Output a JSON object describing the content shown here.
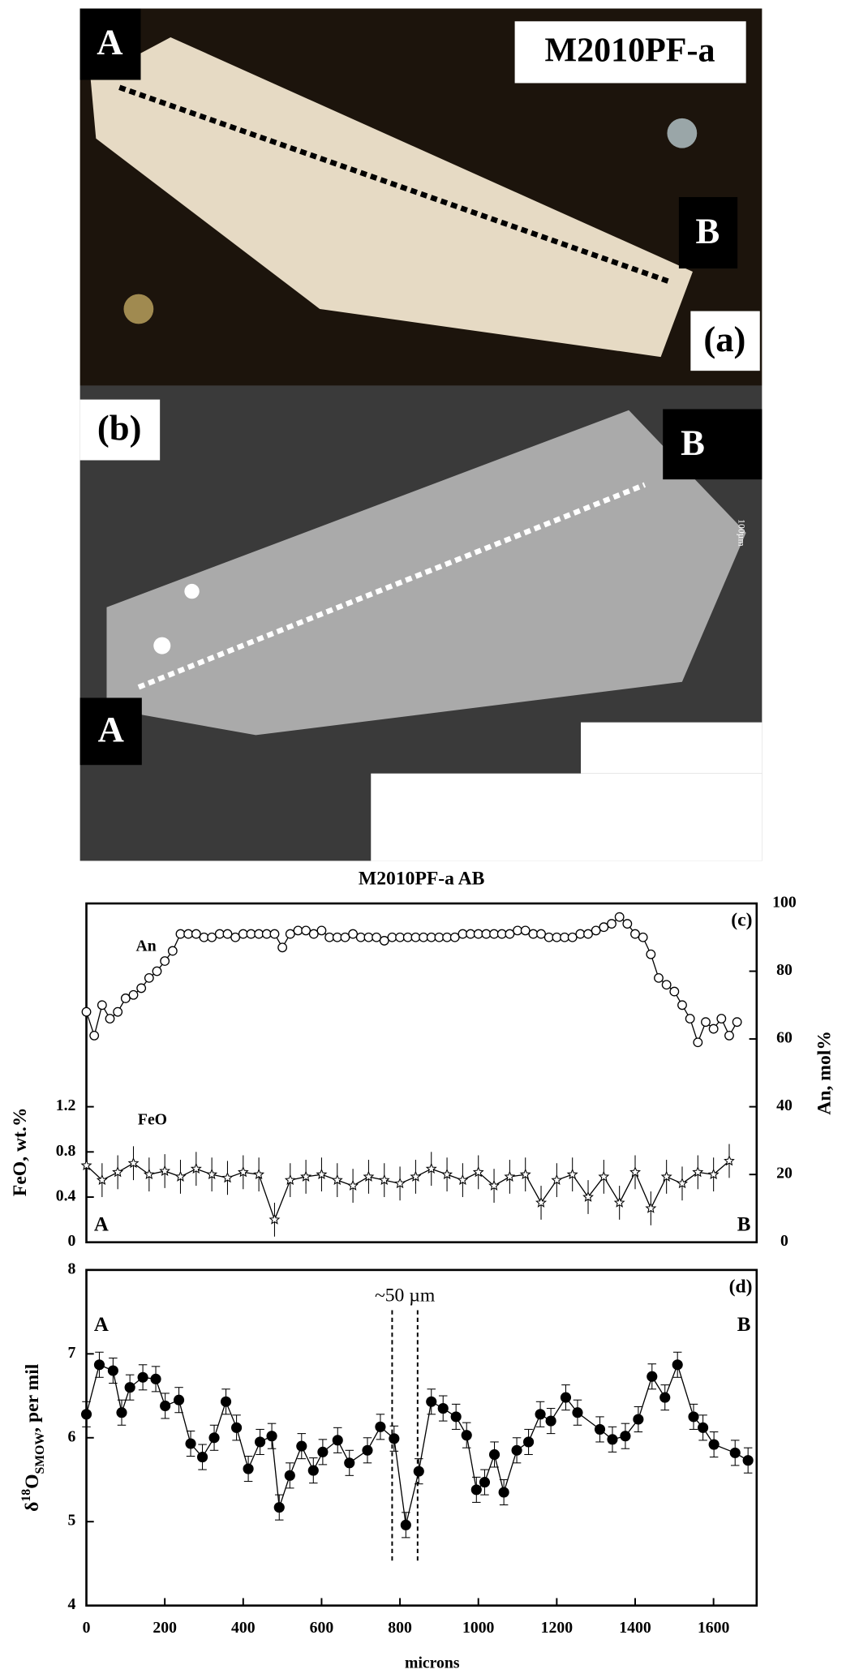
{
  "figure": {
    "photo_a": {
      "sample": "M2010PF-a",
      "label": "(a)",
      "ends": [
        "A",
        "B"
      ]
    },
    "photo_b": {
      "label": "(b)",
      "ends": [
        "A",
        "B"
      ],
      "scale_bar": "100µm"
    }
  },
  "chart_data": [
    {
      "type": "line",
      "title": "M2010PF-a AB",
      "panel_label": "(c)",
      "ylabel": "FeO, wt.%",
      "y2label": "An, mol%",
      "end_labels": [
        "A",
        "B"
      ],
      "xlim": [
        0,
        1710
      ],
      "ylim": [
        0,
        3
      ],
      "yticks": [
        0,
        0.4,
        0.8,
        1.2
      ],
      "y2lim": [
        0,
        100
      ],
      "y2ticks": [
        0,
        20,
        40,
        60,
        80,
        100
      ],
      "series": [
        {
          "name": "An",
          "axis": "y2",
          "marker": "circle",
          "color": "#000000",
          "x": [
            0,
            20,
            40,
            60,
            80,
            100,
            120,
            140,
            160,
            180,
            200,
            220,
            240,
            260,
            280,
            300,
            320,
            340,
            360,
            380,
            400,
            420,
            440,
            460,
            480,
            500,
            520,
            540,
            560,
            580,
            600,
            620,
            640,
            660,
            680,
            700,
            720,
            740,
            760,
            780,
            800,
            820,
            840,
            860,
            880,
            900,
            920,
            940,
            960,
            980,
            1000,
            1020,
            1040,
            1060,
            1080,
            1100,
            1120,
            1140,
            1160,
            1180,
            1200,
            1220,
            1240,
            1260,
            1280,
            1300,
            1320,
            1340,
            1360,
            1380,
            1400,
            1420,
            1440,
            1460,
            1480,
            1500,
            1520,
            1540,
            1560,
            1580,
            1600,
            1620,
            1640,
            1660
          ],
          "values": [
            68,
            61,
            70,
            66,
            68,
            72,
            73,
            75,
            78,
            80,
            83,
            86,
            91,
            91,
            91,
            90,
            90,
            91,
            91,
            90,
            91,
            91,
            91,
            91,
            91,
            87,
            91,
            92,
            92,
            91,
            92,
            90,
            90,
            90,
            91,
            90,
            90,
            90,
            89,
            90,
            90,
            90,
            90,
            90,
            90,
            90,
            90,
            90,
            91,
            91,
            91,
            91,
            91,
            91,
            91,
            92,
            92,
            91,
            91,
            90,
            90,
            90,
            90,
            91,
            91,
            92,
            93,
            94,
            96,
            94,
            91,
            90,
            85,
            78,
            76,
            74,
            70,
            66,
            59,
            65,
            63,
            66,
            61,
            65
          ]
        },
        {
          "name": "FeO",
          "axis": "y",
          "marker": "star",
          "color": "#000000",
          "x": [
            0,
            40,
            80,
            120,
            160,
            200,
            240,
            280,
            320,
            360,
            400,
            440,
            480,
            520,
            560,
            600,
            640,
            680,
            720,
            760,
            800,
            840,
            880,
            920,
            960,
            1000,
            1040,
            1080,
            1120,
            1160,
            1200,
            1240,
            1280,
            1320,
            1360,
            1400,
            1440,
            1480,
            1520,
            1560,
            1600,
            1640
          ],
          "values": [
            0.68,
            0.55,
            0.62,
            0.7,
            0.6,
            0.63,
            0.58,
            0.65,
            0.6,
            0.57,
            0.62,
            0.6,
            0.2,
            0.55,
            0.58,
            0.6,
            0.55,
            0.5,
            0.58,
            0.55,
            0.52,
            0.58,
            0.65,
            0.6,
            0.55,
            0.62,
            0.5,
            0.58,
            0.6,
            0.35,
            0.55,
            0.6,
            0.4,
            0.58,
            0.35,
            0.62,
            0.3,
            0.58,
            0.52,
            0.62,
            0.6,
            0.72
          ],
          "errors": [
            0.15,
            0.15,
            0.15,
            0.15,
            0.15,
            0.15,
            0.15,
            0.15,
            0.15,
            0.15,
            0.15,
            0.15,
            0.15,
            0.15,
            0.15,
            0.15,
            0.15,
            0.15,
            0.15,
            0.15,
            0.15,
            0.15,
            0.15,
            0.15,
            0.15,
            0.15,
            0.15,
            0.15,
            0.15,
            0.15,
            0.15,
            0.15,
            0.15,
            0.15,
            0.15,
            0.15,
            0.15,
            0.15,
            0.15,
            0.15,
            0.15,
            0.15
          ]
        }
      ]
    },
    {
      "type": "line",
      "panel_label": "(d)",
      "xlabel": "microns",
      "ylabel": {
        "delta": "δ",
        "mass": "18",
        "element": "O",
        "subscript": "SMOW",
        "unit": ", per mil"
      },
      "end_labels": [
        "A",
        "B"
      ],
      "xlim": [
        0,
        1710
      ],
      "xticks": [
        0,
        200,
        400,
        600,
        800,
        1000,
        1200,
        1400,
        1600
      ],
      "ylim": [
        4,
        8
      ],
      "yticks": [
        4,
        5,
        6,
        7,
        8
      ],
      "annotation": "~50 µm",
      "annotation_lines_x": [
        780,
        845
      ],
      "series": [
        {
          "marker": "dot",
          "color": "#000000",
          "x": [
            0,
            33,
            68,
            90,
            111,
            144,
            177,
            201,
            236,
            266,
            296,
            326,
            356,
            383,
            413,
            443,
            473,
            492,
            519,
            549,
            579,
            603,
            641,
            671,
            717,
            750,
            785,
            815,
            848,
            880,
            910,
            943,
            970,
            995,
            1016,
            1041,
            1065,
            1098,
            1128,
            1158,
            1185,
            1223,
            1253,
            1310,
            1342,
            1375,
            1408,
            1443,
            1476,
            1508,
            1549,
            1573,
            1601,
            1655,
            1688
          ],
          "values": [
            6.28,
            6.87,
            6.8,
            6.3,
            6.6,
            6.72,
            6.7,
            6.38,
            6.45,
            5.93,
            5.77,
            6.0,
            6.43,
            6.12,
            5.63,
            5.95,
            6.02,
            5.17,
            5.55,
            5.9,
            5.61,
            5.83,
            5.97,
            5.7,
            5.85,
            6.13,
            5.99,
            4.96,
            5.6,
            6.43,
            6.35,
            6.25,
            6.03,
            5.38,
            5.47,
            5.8,
            5.35,
            5.85,
            5.95,
            6.28,
            6.2,
            6.48,
            6.3,
            6.1,
            5.98,
            6.02,
            6.22,
            6.73,
            6.48,
            6.87,
            6.25,
            6.12,
            5.92,
            5.82,
            5.73
          ],
          "errors": [
            0.15,
            0.15,
            0.15,
            0.15,
            0.15,
            0.15,
            0.15,
            0.15,
            0.15,
            0.15,
            0.15,
            0.15,
            0.15,
            0.15,
            0.15,
            0.15,
            0.15,
            0.15,
            0.15,
            0.15,
            0.15,
            0.15,
            0.15,
            0.15,
            0.15,
            0.15,
            0.15,
            0.15,
            0.15,
            0.15,
            0.15,
            0.15,
            0.15,
            0.15,
            0.15,
            0.15,
            0.15,
            0.15,
            0.15,
            0.15,
            0.15,
            0.15,
            0.15,
            0.15,
            0.15,
            0.15,
            0.15,
            0.15,
            0.15,
            0.15,
            0.15,
            0.15,
            0.15,
            0.15,
            0.15
          ]
        }
      ]
    }
  ]
}
